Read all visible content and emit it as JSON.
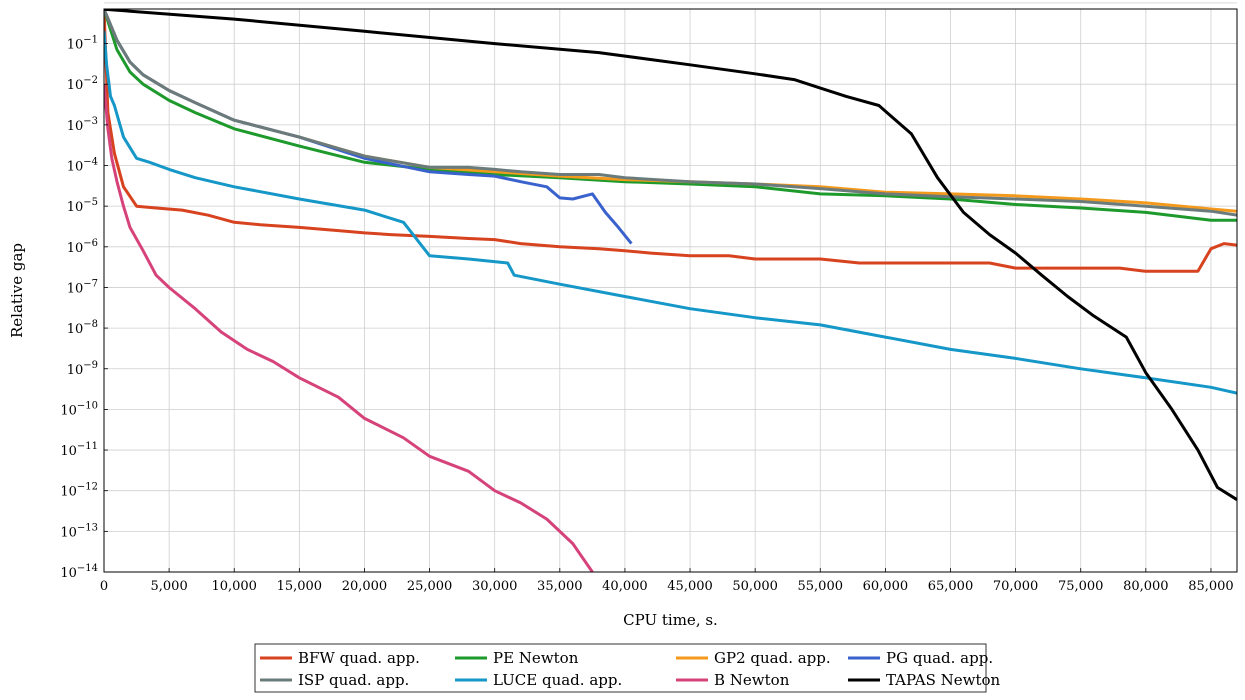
{
  "chart_data": {
    "type": "line",
    "title": "",
    "xlabel": "CPU time, s.",
    "ylabel": "Relative gap",
    "xlim": [
      0,
      87000
    ],
    "ylim_log10": [
      -14,
      0
    ],
    "y_scale": "log",
    "grid": true,
    "legend_placement": "bottom",
    "x_ticks": [
      "0",
      "5,000",
      "10,000",
      "15,000",
      "20,000",
      "25,000",
      "30,000",
      "35,000",
      "40,000",
      "45,000",
      "50,000",
      "55,000",
      "60,000",
      "65,000",
      "70,000",
      "75,000",
      "80,000",
      "85,000"
    ],
    "x_tick_values": [
      0,
      5000,
      10000,
      15000,
      20000,
      25000,
      30000,
      35000,
      40000,
      45000,
      50000,
      55000,
      60000,
      65000,
      70000,
      75000,
      80000,
      85000
    ],
    "y_tick_exponents": [
      -14,
      -13,
      -12,
      -11,
      -10,
      -9,
      -8,
      -7,
      -6,
      -5,
      -4,
      -3,
      -2,
      -1
    ],
    "series": [
      {
        "name": "BFW quad. app.",
        "color": "#d7421f",
        "x": [
          0,
          300,
          800,
          1500,
          2500,
          4000,
          6000,
          8000,
          10000,
          12000,
          15000,
          18000,
          20000,
          22000,
          25000,
          28000,
          30000,
          32000,
          35000,
          38000,
          40000,
          42000,
          45000,
          48000,
          50000,
          52000,
          55000,
          58000,
          60000,
          62000,
          65000,
          68000,
          70000,
          72000,
          75000,
          78000,
          80000,
          82000,
          84000,
          85000,
          86000,
          87000
        ],
        "y": [
          0.7,
          0.002,
          0.0002,
          3e-05,
          1e-05,
          9e-06,
          8e-06,
          6e-06,
          4e-06,
          3.5e-06,
          3e-06,
          2.5e-06,
          2.2e-06,
          2e-06,
          1.8e-06,
          1.6e-06,
          1.5e-06,
          1.2e-06,
          1e-06,
          9e-07,
          8e-07,
          7e-07,
          6e-07,
          6e-07,
          5e-07,
          5e-07,
          5e-07,
          4e-07,
          4e-07,
          4e-07,
          4e-07,
          4e-07,
          3e-07,
          3e-07,
          3e-07,
          3e-07,
          2.5e-07,
          2.5e-07,
          2.5e-07,
          9e-07,
          1.2e-06,
          1.1e-06
        ]
      },
      {
        "name": "PE Newton",
        "color": "#1e9a2c",
        "x": [
          0,
          1000,
          2000,
          3000,
          5000,
          7000,
          10000,
          15000,
          20000,
          25000,
          30000,
          35000,
          40000,
          45000,
          50000,
          55000,
          60000,
          65000,
          70000,
          75000,
          80000,
          85000,
          87000
        ],
        "y": [
          0.7,
          0.07,
          0.02,
          0.01,
          0.004,
          0.002,
          0.0008,
          0.0003,
          0.00012,
          8e-05,
          6e-05,
          5e-05,
          4e-05,
          3.5e-05,
          3e-05,
          2e-05,
          1.8e-05,
          1.5e-05,
          1.1e-05,
          9e-06,
          7e-06,
          4.5e-06,
          4.5e-06
        ]
      },
      {
        "name": "GP2 quad. app.",
        "color": "#f39a1d",
        "x": [
          0,
          1000,
          2000,
          3000,
          5000,
          7000,
          10000,
          15000,
          20000,
          25000,
          30000,
          35000,
          40000,
          45000,
          50000,
          55000,
          60000,
          65000,
          70000,
          75000,
          80000,
          85000,
          87000
        ],
        "y": [
          0.7,
          0.12,
          0.035,
          0.017,
          0.007,
          0.0035,
          0.0013,
          0.0005,
          0.00017,
          9e-05,
          7e-05,
          5.5e-05,
          4.5e-05,
          4e-05,
          3.5e-05,
          3e-05,
          2.2e-05,
          2e-05,
          1.8e-05,
          1.5e-05,
          1.2e-05,
          8.5e-06,
          7.5e-06
        ]
      },
      {
        "name": "PG quad. app.",
        "color": "#3a62cc",
        "x": [
          0,
          1000,
          2000,
          3000,
          5000,
          7000,
          10000,
          15000,
          20000,
          25000,
          28000,
          30000,
          32000,
          34000,
          35000,
          36000,
          37500,
          38500,
          39500,
          40500
        ],
        "y": [
          0.7,
          0.12,
          0.035,
          0.017,
          0.007,
          0.0035,
          0.0013,
          0.0005,
          0.00015,
          7e-05,
          6e-05,
          5.5e-05,
          4e-05,
          3e-05,
          1.6e-05,
          1.5e-05,
          2e-05,
          7e-06,
          3e-06,
          1.2e-06
        ]
      },
      {
        "name": "ISP quad. app.",
        "color": "#6b7b7b",
        "x": [
          0,
          1000,
          2000,
          3000,
          5000,
          7000,
          10000,
          15000,
          20000,
          25000,
          28000,
          30000,
          32000,
          35000,
          38000,
          40000,
          45000,
          50000,
          55000,
          60000,
          65000,
          70000,
          75000,
          80000,
          85000,
          87000
        ],
        "y": [
          0.7,
          0.12,
          0.035,
          0.017,
          0.007,
          0.0035,
          0.0013,
          0.0005,
          0.00017,
          9e-05,
          9e-05,
          8e-05,
          7e-05,
          6e-05,
          6e-05,
          5e-05,
          4e-05,
          3.5e-05,
          2.7e-05,
          2e-05,
          1.7e-05,
          1.5e-05,
          1.3e-05,
          1e-05,
          7.5e-06,
          6e-06
        ]
      },
      {
        "name": "LUCE quad. app.",
        "color": "#1597c8",
        "x": [
          0,
          200,
          500,
          800,
          1500,
          2500,
          3500,
          5000,
          7000,
          10000,
          15000,
          20000,
          23000,
          25000,
          28000,
          31000,
          31500,
          35000,
          40000,
          45000,
          50000,
          55000,
          60000,
          65000,
          70000,
          75000,
          80000,
          85000,
          87000
        ],
        "y": [
          0.2,
          0.03,
          0.005,
          0.003,
          0.0005,
          0.00015,
          0.00012,
          8e-05,
          5e-05,
          3e-05,
          1.5e-05,
          8e-06,
          4e-06,
          6e-07,
          5e-07,
          4e-07,
          2e-07,
          1.2e-07,
          6e-08,
          3e-08,
          1.8e-08,
          1.2e-08,
          6e-09,
          3e-09,
          1.8e-09,
          1e-09,
          6e-10,
          3.5e-10,
          2.5e-10
        ]
      },
      {
        "name": "B Newton",
        "color": "#d6437a",
        "x": [
          0,
          300,
          600,
          1000,
          1500,
          2000,
          3000,
          4000,
          5000,
          7000,
          9000,
          11000,
          13000,
          15000,
          18000,
          20000,
          23000,
          25000,
          28000,
          30000,
          32000,
          34000,
          36000,
          37500
        ],
        "y": [
          0.01,
          0.0008,
          0.00015,
          4e-05,
          1e-05,
          3e-06,
          8e-07,
          2e-07,
          1e-07,
          3e-08,
          8e-09,
          3e-09,
          1.5e-09,
          6e-10,
          2e-10,
          6e-11,
          2e-11,
          7e-12,
          3e-12,
          1e-12,
          5e-13,
          2e-13,
          5e-14,
          1e-14
        ]
      },
      {
        "name": "TAPAS Newton",
        "color": "#000000",
        "x": [
          0,
          10000,
          20000,
          30000,
          38000,
          45000,
          50000,
          53000,
          55000,
          57000,
          59500,
          62000,
          64000,
          66000,
          68000,
          70000,
          72000,
          74000,
          76000,
          78500,
          80000,
          82000,
          84000,
          85500,
          87000
        ],
        "y": [
          0.7,
          0.4,
          0.2,
          0.1,
          0.06,
          0.03,
          0.018,
          0.013,
          0.008,
          0.005,
          0.003,
          0.0006,
          5e-05,
          7e-06,
          2e-06,
          7e-07,
          2e-07,
          6e-08,
          2e-08,
          6e-09,
          8e-10,
          1e-10,
          1e-11,
          1.2e-12,
          6e-13
        ]
      }
    ],
    "legend": [
      {
        "label": "BFW quad. app.",
        "color": "#d7421f"
      },
      {
        "label": "PE Newton",
        "color": "#1e9a2c"
      },
      {
        "label": "GP2 quad. app.",
        "color": "#f39a1d"
      },
      {
        "label": "PG quad. app.",
        "color": "#3a62cc"
      },
      {
        "label": "ISP quad. app.",
        "color": "#6b7b7b"
      },
      {
        "label": "LUCE quad. app.",
        "color": "#1597c8"
      },
      {
        "label": "B Newton",
        "color": "#d6437a"
      },
      {
        "label": "TAPAS Newton",
        "color": "#000000"
      }
    ]
  }
}
